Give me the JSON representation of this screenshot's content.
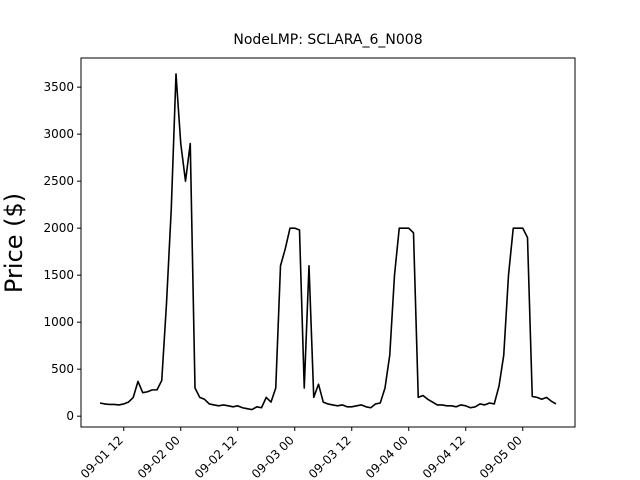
{
  "chart_data": {
    "type": "line",
    "title": "NodeLMP: SCLARA_6_N008",
    "y_label": "Price ($)",
    "x": [
      "09-01 07",
      "09-01 08",
      "09-01 09",
      "09-01 10",
      "09-01 11",
      "09-01 12",
      "09-01 13",
      "09-01 14",
      "09-01 15",
      "09-01 16",
      "09-01 17",
      "09-01 18",
      "09-01 19",
      "09-01 20",
      "09-01 21",
      "09-01 22",
      "09-01 23",
      "09-02 00",
      "09-02 01",
      "09-02 02",
      "09-02 03",
      "09-02 04",
      "09-02 05",
      "09-02 06",
      "09-02 07",
      "09-02 08",
      "09-02 09",
      "09-02 10",
      "09-02 11",
      "09-02 12",
      "09-02 13",
      "09-02 14",
      "09-02 15",
      "09-02 16",
      "09-02 17",
      "09-02 18",
      "09-02 19",
      "09-02 20",
      "09-02 21",
      "09-02 22",
      "09-02 23",
      "09-03 00",
      "09-03 01",
      "09-03 02",
      "09-03 03",
      "09-03 04",
      "09-03 05",
      "09-03 06",
      "09-03 07",
      "09-03 08",
      "09-03 09",
      "09-03 10",
      "09-03 11",
      "09-03 12",
      "09-03 13",
      "09-03 14",
      "09-03 15",
      "09-03 16",
      "09-03 17",
      "09-03 18",
      "09-03 19",
      "09-03 20",
      "09-03 21",
      "09-03 22",
      "09-03 23",
      "09-04 00",
      "09-04 01",
      "09-04 02",
      "09-04 03",
      "09-04 04",
      "09-04 05",
      "09-04 06",
      "09-04 07",
      "09-04 08",
      "09-04 09",
      "09-04 10",
      "09-04 11",
      "09-04 12",
      "09-04 13",
      "09-04 14",
      "09-04 15",
      "09-04 16",
      "09-04 17",
      "09-04 18",
      "09-04 19",
      "09-04 20",
      "09-04 21",
      "09-04 22",
      "09-04 23",
      "09-05 00",
      "09-05 01",
      "09-05 02",
      "09-05 03",
      "09-05 04",
      "09-05 05",
      "09-05 06",
      "09-05 07"
    ],
    "series": [
      {
        "color": "#000000",
        "values": [
          140,
          130,
          125,
          125,
          120,
          130,
          150,
          200,
          370,
          250,
          260,
          280,
          280,
          380,
          1200,
          2200,
          3640,
          2900,
          2500,
          2900,
          300,
          200,
          180,
          130,
          120,
          110,
          120,
          110,
          100,
          110,
          90,
          80,
          70,
          100,
          90,
          200,
          150,
          300,
          1600,
          1780,
          2000,
          2000,
          1980,
          300,
          1600,
          200,
          340,
          150,
          130,
          120,
          110,
          120,
          100,
          100,
          110,
          120,
          100,
          90,
          130,
          140,
          300,
          650,
          1500,
          2000,
          2000,
          2000,
          1950,
          200,
          220,
          180,
          150,
          120,
          120,
          110,
          110,
          100,
          120,
          110,
          90,
          100,
          130,
          120,
          140,
          130,
          320,
          650,
          1500,
          2000,
          2000,
          2000,
          1900,
          210,
          200,
          180,
          200,
          160,
          130
        ]
      }
    ],
    "xlim": [
      "09-01 03",
      "09-05 11"
    ],
    "xticks": [
      "09-01 12",
      "09-02 00",
      "09-02 12",
      "09-03 00",
      "09-03 12",
      "09-04 00",
      "09-04 12",
      "09-05 00"
    ],
    "ylim": [
      -115,
      3810
    ],
    "yticks": [
      0,
      500,
      1000,
      1500,
      2000,
      2500,
      3000,
      3500
    ]
  }
}
